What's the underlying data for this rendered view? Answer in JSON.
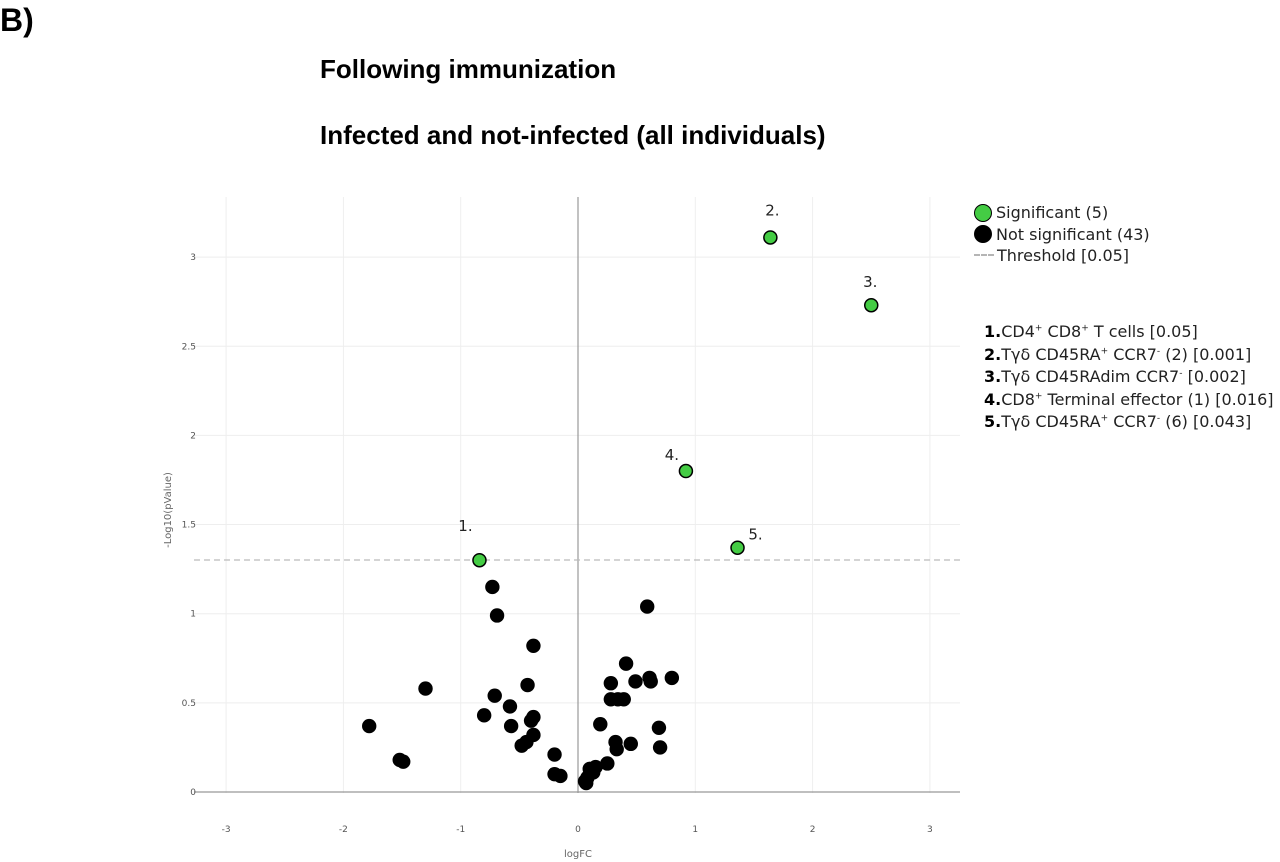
{
  "panel_label": "B)",
  "title_line1": "Following immunization",
  "title_line2": "Infected and not-infected (all individuals)",
  "colors": {
    "significant": "#44cc44",
    "not_significant": "#000000",
    "threshold": "#bbbbbb",
    "grid": "#eeeeee",
    "zero_axis": "#999999"
  },
  "legend": {
    "significant": "Significant (5)",
    "not_significant": "Not significant (43)",
    "threshold": "Threshold [0.05]"
  },
  "annotations": [
    {
      "num": "1.",
      "parts": [
        "CD4",
        "+",
        " CD8",
        "+",
        " T cells [0.05]"
      ]
    },
    {
      "num": "2.",
      "parts": [
        "Tγδ CD45RA",
        "+",
        " CCR7",
        "-",
        " (2) [0.001]"
      ]
    },
    {
      "num": "3.",
      "parts": [
        "Tγδ CD45RAdim CCR7",
        "-",
        " [0.002]"
      ]
    },
    {
      "num": "4.",
      "parts": [
        "CD8",
        "+",
        " Terminal effector (1) [0.016]"
      ]
    },
    {
      "num": "5.",
      "parts": [
        "Tγδ CD45RA",
        "+",
        " CCR7",
        "-",
        " (6) [0.043]"
      ]
    }
  ],
  "chart_data": {
    "type": "scatter",
    "xlabel": "logFC",
    "ylabel": "-Log10(pValue)",
    "xlim": [
      -3.3,
      3.25
    ],
    "ylim": [
      0,
      3.35
    ],
    "xticks": [
      -3,
      -2,
      -1,
      0,
      1,
      2,
      3
    ],
    "yticks": [
      0,
      0.5,
      1,
      1.5,
      2,
      2.5,
      3
    ],
    "threshold_y": 1.301,
    "grid": true,
    "legend_position": "right",
    "series": [
      {
        "name": "Significant (5)",
        "points": [
          {
            "x": -0.84,
            "y": 1.3,
            "label": "1."
          },
          {
            "x": 1.64,
            "y": 3.11,
            "label": "2."
          },
          {
            "x": 2.5,
            "y": 2.73,
            "label": "3."
          },
          {
            "x": 0.92,
            "y": 1.8,
            "label": "4."
          },
          {
            "x": 1.36,
            "y": 1.37,
            "label": "5."
          }
        ]
      },
      {
        "name": "Not significant (43)",
        "points": [
          {
            "x": -1.78,
            "y": 0.37
          },
          {
            "x": -1.52,
            "y": 0.18
          },
          {
            "x": -1.49,
            "y": 0.17
          },
          {
            "x": -1.3,
            "y": 0.58
          },
          {
            "x": -0.73,
            "y": 1.15
          },
          {
            "x": -0.69,
            "y": 0.99
          },
          {
            "x": -0.8,
            "y": 0.43
          },
          {
            "x": -0.71,
            "y": 0.54
          },
          {
            "x": -0.58,
            "y": 0.48
          },
          {
            "x": -0.57,
            "y": 0.37
          },
          {
            "x": -0.38,
            "y": 0.82
          },
          {
            "x": -0.43,
            "y": 0.6
          },
          {
            "x": -0.38,
            "y": 0.42
          },
          {
            "x": -0.4,
            "y": 0.4
          },
          {
            "x": -0.38,
            "y": 0.32
          },
          {
            "x": -0.44,
            "y": 0.28
          },
          {
            "x": -0.48,
            "y": 0.26
          },
          {
            "x": -0.2,
            "y": 0.21
          },
          {
            "x": -0.2,
            "y": 0.1
          },
          {
            "x": -0.15,
            "y": 0.09
          },
          {
            "x": 0.06,
            "y": 0.06
          },
          {
            "x": 0.08,
            "y": 0.08
          },
          {
            "x": 0.1,
            "y": 0.13
          },
          {
            "x": 0.13,
            "y": 0.11
          },
          {
            "x": 0.15,
            "y": 0.14
          },
          {
            "x": 0.25,
            "y": 0.16
          },
          {
            "x": 0.19,
            "y": 0.38
          },
          {
            "x": 0.28,
            "y": 0.61
          },
          {
            "x": 0.28,
            "y": 0.52
          },
          {
            "x": 0.34,
            "y": 0.52
          },
          {
            "x": 0.39,
            "y": 0.52
          },
          {
            "x": 0.32,
            "y": 0.28
          },
          {
            "x": 0.33,
            "y": 0.24
          },
          {
            "x": 0.45,
            "y": 0.27
          },
          {
            "x": 0.41,
            "y": 0.72
          },
          {
            "x": 0.49,
            "y": 0.62
          },
          {
            "x": 0.59,
            "y": 1.04
          },
          {
            "x": 0.61,
            "y": 0.64
          },
          {
            "x": 0.62,
            "y": 0.62
          },
          {
            "x": 0.8,
            "y": 0.64
          },
          {
            "x": 0.69,
            "y": 0.36
          },
          {
            "x": 0.7,
            "y": 0.25
          },
          {
            "x": 0.07,
            "y": 0.05
          }
        ]
      }
    ]
  }
}
